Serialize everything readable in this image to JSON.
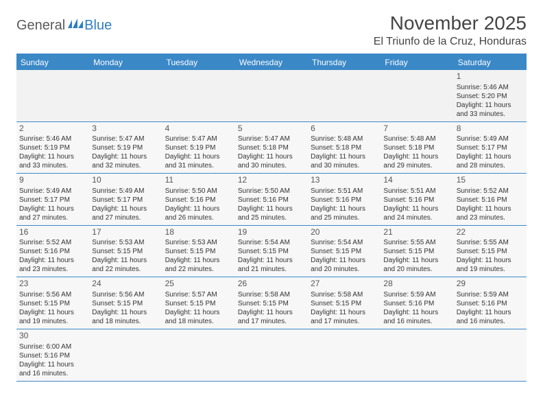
{
  "logo": {
    "text1": "General",
    "text2": "Blue",
    "color1": "#5a5a5a",
    "color2": "#2f7dc4"
  },
  "title": "November 2025",
  "location": "El Triunfo de la Cruz, Honduras",
  "colors": {
    "header_bg": "#3b88c7",
    "header_text": "#ffffff",
    "border": "#3b88c7"
  },
  "weekdays": [
    "Sunday",
    "Monday",
    "Tuesday",
    "Wednesday",
    "Thursday",
    "Friday",
    "Saturday"
  ],
  "labels": {
    "sunrise": "Sunrise:",
    "sunset": "Sunset:",
    "daylight_prefix": "Daylight:",
    "and": "and",
    "minutes_suffix": "minutes."
  },
  "weeks": [
    [
      null,
      null,
      null,
      null,
      null,
      null,
      {
        "d": "1",
        "sr": "5:46 AM",
        "ss": "5:20 PM",
        "dl": "11 hours",
        "dm": "33"
      }
    ],
    [
      {
        "d": "2",
        "sr": "5:46 AM",
        "ss": "5:19 PM",
        "dl": "11 hours",
        "dm": "33"
      },
      {
        "d": "3",
        "sr": "5:47 AM",
        "ss": "5:19 PM",
        "dl": "11 hours",
        "dm": "32"
      },
      {
        "d": "4",
        "sr": "5:47 AM",
        "ss": "5:19 PM",
        "dl": "11 hours",
        "dm": "31"
      },
      {
        "d": "5",
        "sr": "5:47 AM",
        "ss": "5:18 PM",
        "dl": "11 hours",
        "dm": "30"
      },
      {
        "d": "6",
        "sr": "5:48 AM",
        "ss": "5:18 PM",
        "dl": "11 hours",
        "dm": "30"
      },
      {
        "d": "7",
        "sr": "5:48 AM",
        "ss": "5:18 PM",
        "dl": "11 hours",
        "dm": "29"
      },
      {
        "d": "8",
        "sr": "5:49 AM",
        "ss": "5:17 PM",
        "dl": "11 hours",
        "dm": "28"
      }
    ],
    [
      {
        "d": "9",
        "sr": "5:49 AM",
        "ss": "5:17 PM",
        "dl": "11 hours",
        "dm": "27"
      },
      {
        "d": "10",
        "sr": "5:49 AM",
        "ss": "5:17 PM",
        "dl": "11 hours",
        "dm": "27"
      },
      {
        "d": "11",
        "sr": "5:50 AM",
        "ss": "5:16 PM",
        "dl": "11 hours",
        "dm": "26"
      },
      {
        "d": "12",
        "sr": "5:50 AM",
        "ss": "5:16 PM",
        "dl": "11 hours",
        "dm": "25"
      },
      {
        "d": "13",
        "sr": "5:51 AM",
        "ss": "5:16 PM",
        "dl": "11 hours",
        "dm": "25"
      },
      {
        "d": "14",
        "sr": "5:51 AM",
        "ss": "5:16 PM",
        "dl": "11 hours",
        "dm": "24"
      },
      {
        "d": "15",
        "sr": "5:52 AM",
        "ss": "5:16 PM",
        "dl": "11 hours",
        "dm": "23"
      }
    ],
    [
      {
        "d": "16",
        "sr": "5:52 AM",
        "ss": "5:16 PM",
        "dl": "11 hours",
        "dm": "23"
      },
      {
        "d": "17",
        "sr": "5:53 AM",
        "ss": "5:15 PM",
        "dl": "11 hours",
        "dm": "22"
      },
      {
        "d": "18",
        "sr": "5:53 AM",
        "ss": "5:15 PM",
        "dl": "11 hours",
        "dm": "22"
      },
      {
        "d": "19",
        "sr": "5:54 AM",
        "ss": "5:15 PM",
        "dl": "11 hours",
        "dm": "21"
      },
      {
        "d": "20",
        "sr": "5:54 AM",
        "ss": "5:15 PM",
        "dl": "11 hours",
        "dm": "20"
      },
      {
        "d": "21",
        "sr": "5:55 AM",
        "ss": "5:15 PM",
        "dl": "11 hours",
        "dm": "20"
      },
      {
        "d": "22",
        "sr": "5:55 AM",
        "ss": "5:15 PM",
        "dl": "11 hours",
        "dm": "19"
      }
    ],
    [
      {
        "d": "23",
        "sr": "5:56 AM",
        "ss": "5:15 PM",
        "dl": "11 hours",
        "dm": "19"
      },
      {
        "d": "24",
        "sr": "5:56 AM",
        "ss": "5:15 PM",
        "dl": "11 hours",
        "dm": "18"
      },
      {
        "d": "25",
        "sr": "5:57 AM",
        "ss": "5:15 PM",
        "dl": "11 hours",
        "dm": "18"
      },
      {
        "d": "26",
        "sr": "5:58 AM",
        "ss": "5:15 PM",
        "dl": "11 hours",
        "dm": "17"
      },
      {
        "d": "27",
        "sr": "5:58 AM",
        "ss": "5:15 PM",
        "dl": "11 hours",
        "dm": "17"
      },
      {
        "d": "28",
        "sr": "5:59 AM",
        "ss": "5:16 PM",
        "dl": "11 hours",
        "dm": "16"
      },
      {
        "d": "29",
        "sr": "5:59 AM",
        "ss": "5:16 PM",
        "dl": "11 hours",
        "dm": "16"
      }
    ],
    [
      {
        "d": "30",
        "sr": "6:00 AM",
        "ss": "5:16 PM",
        "dl": "11 hours",
        "dm": "16"
      },
      null,
      null,
      null,
      null,
      null,
      null
    ]
  ]
}
